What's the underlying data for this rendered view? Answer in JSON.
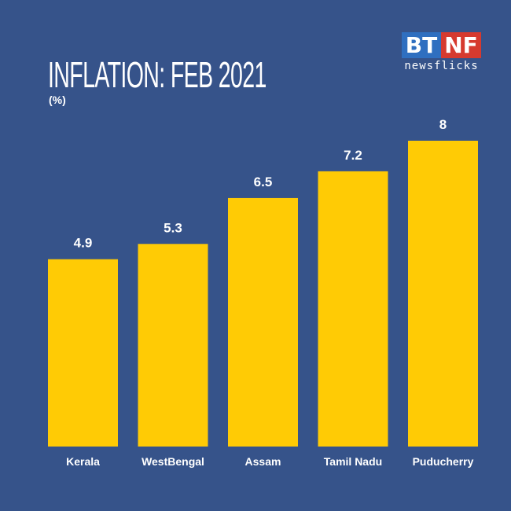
{
  "logo": {
    "left": "BT",
    "right": "NF",
    "tagline": "newsflicks"
  },
  "chart_data": {
    "type": "bar",
    "title": "INFLATION: FEB 2021",
    "ylabel": "(%)",
    "categories": [
      "Kerala",
      "WestBengal",
      "Assam",
      "Tamil Nadu",
      "Puducherry"
    ],
    "values": [
      4.9,
      5.3,
      6.5,
      7.2,
      8
    ],
    "data_labels": [
      "4.9",
      "5.3",
      "6.5",
      "7.2",
      "8"
    ],
    "ylim": [
      0,
      8
    ],
    "grid": false,
    "colors": {
      "bar": "#ffcb05",
      "background": "#36538a",
      "text": "#ffffff"
    }
  }
}
